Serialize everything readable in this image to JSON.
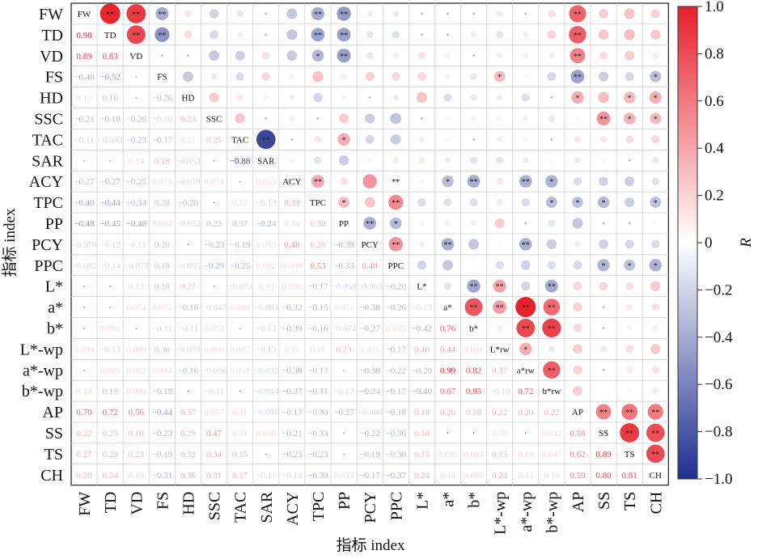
{
  "chart_data": {
    "type": "heatmap",
    "xlabel": "指标 index",
    "ylabel": "指标 index",
    "colorbar_label": "R",
    "colorbar_ticks": [
      "1.0",
      "0.8",
      "0.6",
      "0.4",
      "0.2",
      "0",
      "−0.2",
      "−0.4",
      "−0.6",
      "−0.8",
      "−1.0"
    ],
    "clim": [
      -1,
      1
    ],
    "colors": {
      "positive": "#e8202a",
      "neutral": "#ffffff",
      "negative": "#1f2f8f"
    },
    "variables": [
      "FW",
      "TD",
      "VD",
      "FS",
      "HD",
      "SSC",
      "TAC",
      "SAR",
      "ACY",
      "TPC",
      "PP",
      "PCY",
      "PPC",
      "L*",
      "a*",
      "b*",
      "L*-wp",
      "a*-wp",
      "b*-wp",
      "AP",
      "SS",
      "TS",
      "CH"
    ],
    "diagonal_labels": [
      "FW",
      "TD",
      "VD",
      "FS",
      "HD",
      "SSC",
      "TAC",
      "SAR",
      "ACY",
      "TPC",
      "PP",
      "PCY",
      "PPC",
      "L*",
      "a*",
      "b*",
      "L*rw",
      "a*rw",
      "b*rw",
      "AP",
      "SS",
      "TS",
      "CH"
    ],
    "lower_values": [
      [],
      [
        "0.98"
      ],
      [
        "0.89",
        "0.83"
      ],
      [
        "−0.40",
        "−0.52",
        "·"
      ],
      [
        "0.12",
        "0.16",
        "·",
        "−0.26"
      ],
      [
        "−0.21",
        "−0.18",
        "−0.26",
        "−0.10",
        "0.23"
      ],
      [
        "−0.11",
        "−0.083",
        "−0.23",
        "−0.17",
        "0.11",
        "0.25"
      ],
      [
        "·",
        "·",
        "0.14",
        "0.18",
        "−0.053",
        "·",
        "−0.88"
      ],
      [
        "−0.27",
        "−0.27",
        "−0.25",
        "0.075",
        "−0.079",
        "0.074",
        "·",
        "0.053"
      ],
      [
        "−0.40",
        "−0.44",
        "−0.34",
        "0.28",
        "−0.20",
        "·",
        "0.12",
        "−0.13",
        "0.39"
      ],
      [
        "−0.48",
        "−0.45",
        "−0.46",
        "0.084",
        "−0.052",
        "0.23",
        "0.37",
        "−0.24",
        "0.14",
        "0.30"
      ],
      [
        "−0.079",
        "−0.12",
        "−0.11",
        "0.20",
        "·",
        "−0.23",
        "−0.19",
        "0.053",
        "0.48",
        "0.26",
        "−0.39"
      ],
      [
        "−0.092",
        "−0.14",
        "−0.073",
        "0.18",
        "−0.085",
        "−0.29",
        "−0.25",
        "0.092",
        "0.099",
        "0.53",
        "−0.33",
        "0.49"
      ],
      [
        "·",
        "·",
        "0.13",
        "0.18",
        "0.27",
        "·",
        "−0.073",
        "0.10",
        "0.056",
        "−0.17",
        "−0.058",
        "−0.065",
        "−0.20"
      ],
      [
        "·",
        "·",
        "0.074",
        "0.072",
        "−0.16",
        "−0.047",
        "0.048",
        "−0.083",
        "−0.32",
        "−0.15",
        "0.071",
        "−0.38",
        "−0.26",
        "−0.13"
      ],
      [
        "·",
        "0.085",
        "·",
        "−0.11",
        "−0.11",
        "0.074",
        "·",
        "−0.13",
        "−0.39",
        "−0.16",
        "−0.074",
        "−0.27",
        "0.023",
        "−0.42",
        "0.76"
      ],
      [
        "0.094",
        "−0.13",
        "0.080",
        "0.30",
        "−0.079",
        "0.060",
        "0.082",
        "−0.13",
        "0.11",
        "0.11",
        "0.23",
        "0.025",
        "−0.17",
        "0.40",
        "0.44",
        "0.081"
      ],
      [
        "·",
        "0.085",
        "0.082",
        "0.044",
        "−0.16",
        "−0.066",
        "0.051",
        "−0.092",
        "−0.38",
        "−0.17",
        "·",
        "−0.38",
        "−0.22",
        "−0.20",
        "0.99",
        "0.82",
        "0.37"
      ],
      [
        "0.14",
        "0.19",
        "0.090",
        "−0.19",
        "·",
        "−0.11",
        "·",
        "−0.044",
        "−0.37",
        "−0.31",
        "−0.12",
        "−0.24",
        "−0.17",
        "−0.40",
        "0.67",
        "0.85",
        "−0.10",
        "0.72"
      ],
      [
        "0.70",
        "0.72",
        "0.56",
        "−0.44",
        "0.37",
        "0.057",
        "0.11",
        "−0.095",
        "−0.17",
        "−0.30",
        "−0.27",
        "−0.086",
        "−0.18",
        "0.18",
        "0.20",
        "0.18",
        "0.22",
        "0.20",
        "0.22"
      ],
      [
        "0.22",
        "0.25",
        "0.16",
        "−0.23",
        "0.29",
        "0.47",
        "0.11",
        "0.058",
        "−0.21",
        "−0.33",
        "·",
        "−0.22",
        "−0.36",
        "0.18",
        "·",
        "·",
        "0.10",
        "·",
        "0.032",
        "0.56"
      ],
      [
        "0.27",
        "0.29",
        "0.23",
        "−0.19",
        "0.32",
        "0.34",
        "0.15",
        "·",
        "−0.23",
        "−0.23",
        "·",
        "−0.19",
        "−0.30",
        "0.15",
        "0.095",
        "0.064",
        "0.15",
        "0.10",
        "0.047",
        "0.62",
        "0.89"
      ],
      [
        "0.20",
        "0.24",
        "0.10",
        "−0.31",
        "0.36",
        "0.31",
        "0.17",
        "−0.11",
        "−0.14",
        "−0.30",
        "0.033",
        "−0.17",
        "−0.37",
        "0.24",
        "0.14",
        "0.086",
        "0.24",
        "0.13",
        "0.10",
        "0.59",
        "0.80",
        "0.81"
      ]
    ],
    "significance": {
      "0,1": "**",
      "0,2": "**",
      "0,3": "**",
      "0,9": "**",
      "0,10": "**",
      "0,19": "**",
      "1,2": "**",
      "1,3": "**",
      "1,9": "**",
      "1,10": "**",
      "1,19": "**",
      "2,9": "*",
      "2,10": "**",
      "2,19": "**",
      "3,16": "*",
      "3,19": "**",
      "3,22": "*",
      "4,19": "*",
      "4,21": "*",
      "4,22": "*",
      "5,20": "**",
      "5,21": "*",
      "5,22": "*",
      "6,7": "**",
      "6,10": "*",
      "8,9": "**",
      "8,12": "**",
      "8,14": "*",
      "8,15": "**",
      "8,17": "**",
      "8,18": "*",
      "9,10": "*",
      "9,12": "**",
      "9,18": "*",
      "9,19": "*",
      "9,20": "*",
      "9,22": "*",
      "10,11": "**",
      "10,12": "*",
      "11,12": "**",
      "11,14": "**",
      "11,17": "**",
      "12,20": "*",
      "12,21": "*",
      "12,22": "*",
      "13,15": "**",
      "13,16": "**",
      "13,18": "**",
      "14,15": "**",
      "14,16": "**",
      "14,17": "**",
      "14,18": "**",
      "15,17": "**",
      "15,18": "**",
      "16,17": "*",
      "17,18": "**",
      "19,20": "**",
      "19,21": "**",
      "19,22": "**",
      "20,21": "**",
      "20,22": "**",
      "21,22": "**"
    }
  }
}
